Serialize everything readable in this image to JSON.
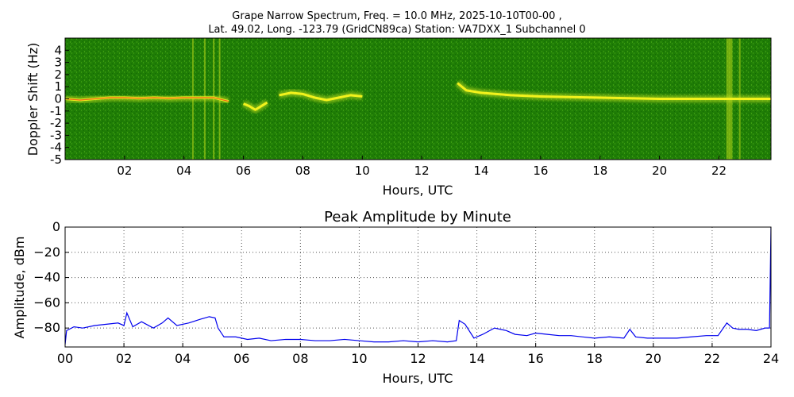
{
  "figure": {
    "title_line1": "Grape Narrow Spectrum, Freq. = 10.0 MHz, 2025-10-10T00-00 ,",
    "title_line2": "Lat.  49.02, Long. -123.79 (GridCN89ca) Station: VA7DXX_1 Subchannel 0"
  },
  "colors": {
    "spectrogram_background": "#1f7d06",
    "spectrogram_low": "#2a8a08",
    "spectrogram_mid": "#b8d81a",
    "spectrogram_high": "#f2f21c",
    "spectrogram_peak": "#e8401a",
    "amplitude_line": "#0000ee",
    "grid": "#555555"
  },
  "chart_data": [
    {
      "type": "heatmap",
      "title": "",
      "xlabel": "Hours, UTC",
      "ylabel": "Doppler Shift (Hz)",
      "xlim": [
        0,
        23.75
      ],
      "ylim": [
        -5,
        5
      ],
      "x_ticks": [
        "02",
        "04",
        "06",
        "08",
        "10",
        "12",
        "14",
        "16",
        "18",
        "20",
        "22"
      ],
      "x_tick_values": [
        2,
        4,
        6,
        8,
        10,
        12,
        14,
        16,
        18,
        20,
        22
      ],
      "y_ticks": [
        "4",
        "3",
        "2",
        "1",
        "0",
        "-1",
        "-2",
        "-3",
        "-4",
        "-5"
      ],
      "y_tick_values": [
        4,
        3,
        2,
        1,
        0,
        -1,
        -2,
        -3,
        -4,
        -5
      ],
      "traces": [
        {
          "hours": [
            0,
            0.5,
            1,
            1.5,
            2,
            2.5,
            3,
            3.5,
            4,
            4.5,
            5,
            5.5
          ],
          "doppler_hz": [
            0,
            -0.1,
            0,
            0.1,
            0.1,
            0.05,
            0.1,
            0.05,
            0.1,
            0.1,
            0.1,
            -0.2
          ]
        },
        {
          "hours": [
            6.0,
            6.2,
            6.4,
            6.6,
            6.8
          ],
          "doppler_hz": [
            -0.4,
            -0.6,
            -0.9,
            -0.6,
            -0.3
          ]
        },
        {
          "hours": [
            7.2,
            7.6,
            8.0,
            8.4,
            8.8,
            9.2,
            9.6,
            10.0
          ],
          "doppler_hz": [
            0.3,
            0.5,
            0.4,
            0.1,
            -0.1,
            0.1,
            0.3,
            0.2
          ]
        },
        {
          "hours": [
            13.2,
            13.5,
            14,
            14.5,
            15,
            16,
            17,
            18,
            19,
            20,
            21,
            22,
            23,
            23.75
          ],
          "doppler_hz": [
            1.3,
            0.7,
            0.5,
            0.4,
            0.3,
            0.2,
            0.15,
            0.1,
            0.05,
            0,
            0,
            0,
            0,
            0
          ]
        }
      ],
      "bright_bands_hours": [
        4.3,
        4.7,
        5.0,
        5.2,
        22.3,
        22.4,
        22.7
      ]
    },
    {
      "type": "line",
      "title": "Peak Amplitude by Minute",
      "xlabel": "Hours, UTC",
      "ylabel": "Amplitude, dBm",
      "xlim": [
        0,
        24
      ],
      "ylim": [
        -95,
        0
      ],
      "grid": true,
      "x_ticks": [
        "00",
        "02",
        "04",
        "06",
        "08",
        "10",
        "12",
        "14",
        "16",
        "18",
        "20",
        "22",
        "24"
      ],
      "x_tick_values": [
        0,
        2,
        4,
        6,
        8,
        10,
        12,
        14,
        16,
        18,
        20,
        22,
        24
      ],
      "y_ticks": [
        "0",
        "−20",
        "−40",
        "−60",
        "−80"
      ],
      "y_tick_values": [
        0,
        -20,
        -40,
        -60,
        -80
      ],
      "series": [
        {
          "x": [
            0,
            0.05,
            0.3,
            0.6,
            1.0,
            1.4,
            1.8,
            2.0,
            2.1,
            2.3,
            2.6,
            3.0,
            3.3,
            3.5,
            3.8,
            4.2,
            4.6,
            4.9,
            5.1,
            5.2,
            5.4,
            5.8,
            6.2,
            6.6,
            7.0,
            7.5,
            8.0,
            8.5,
            9.0,
            9.5,
            10.0,
            10.5,
            11.0,
            11.5,
            12.0,
            12.5,
            13.0,
            13.3,
            13.4,
            13.6,
            13.9,
            14.2,
            14.6,
            15.0,
            15.3,
            15.7,
            16.0,
            16.4,
            16.8,
            17.2,
            17.6,
            18.0,
            18.5,
            19.0,
            19.2,
            19.4,
            19.8,
            20.3,
            20.8,
            21.3,
            21.8,
            22.2,
            22.5,
            22.7,
            22.9,
            23.2,
            23.5,
            23.8,
            23.95,
            24.0
          ],
          "y": [
            -93,
            -82,
            -79,
            -80,
            -78,
            -77,
            -76,
            -78,
            -68,
            -79,
            -75,
            -80,
            -76,
            -72,
            -78,
            -76,
            -73,
            -71,
            -72,
            -80,
            -87,
            -87,
            -89,
            -88,
            -90,
            -89,
            -89,
            -90,
            -90,
            -89,
            -90,
            -91,
            -91,
            -90,
            -91,
            -90,
            -91,
            -90,
            -74,
            -77,
            -88,
            -85,
            -80,
            -82,
            -85,
            -86,
            -84,
            -85,
            -86,
            -86,
            -87,
            -88,
            -87,
            -88,
            -81,
            -87,
            -88,
            -88,
            -88,
            -87,
            -86,
            -86,
            -76,
            -80,
            -81,
            -81,
            -82,
            -80,
            -80,
            0
          ]
        }
      ]
    }
  ]
}
